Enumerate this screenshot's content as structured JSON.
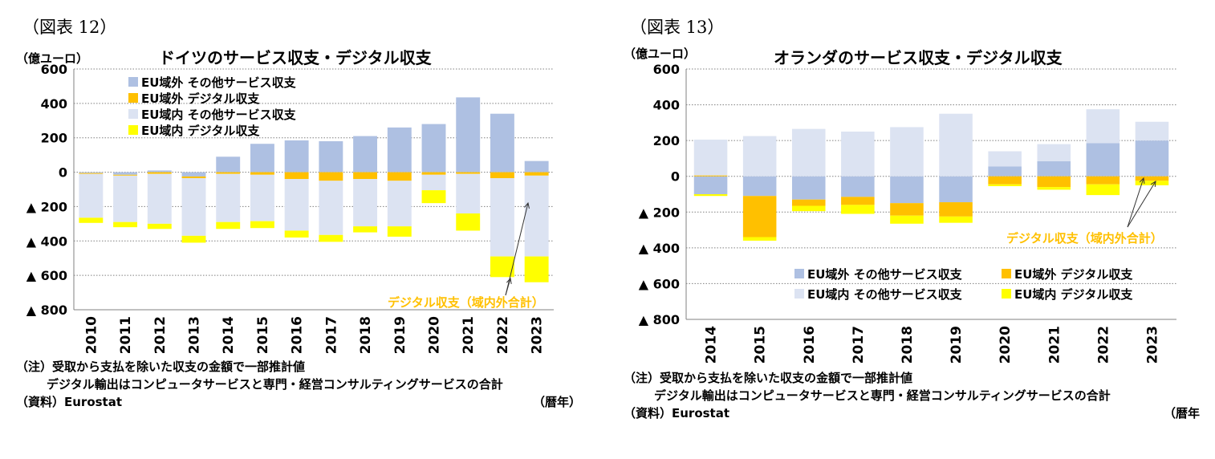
{
  "colors": {
    "extra_other": "#aec0e2",
    "extra_digital": "#ffc000",
    "intra_other": "#dce3f2",
    "intra_digital": "#ffff00",
    "grid": "#808080",
    "annotation": "#ffc000"
  },
  "panels": [
    {
      "fig_label": "（図表 12）",
      "unit_label": "（億ユーロ）",
      "notes": {
        "line1": "（注）受取から支払を除いた収支の金額で一部推計値",
        "line2": "デジタル輸出はコンピュータサービスと専門・経営コンサルティングサービスの合計",
        "line3": "（資料）Eurostat"
      },
      "year_unit": "（暦年）"
    },
    {
      "fig_label": "（図表 13）",
      "unit_label": "（億ユーロ）",
      "notes": {
        "line1": "（注）受取から支払を除いた収支の金額で一部推計値",
        "line2": "デジタル輸出はコンピュータサービスと専門・経営コンサルティングサービスの合計",
        "line3": "（資料）Eurostat"
      },
      "year_unit": "（暦年"
    }
  ],
  "chart_data": [
    {
      "type": "bar",
      "stacked": true,
      "title": "ドイツのサービス収支・デジタル収支",
      "ylabel": "（億ユーロ）",
      "xlabel": "（暦年）",
      "ylim": [
        -800,
        600
      ],
      "yticks": [
        600,
        400,
        200,
        0,
        -200,
        -400,
        -600,
        -800
      ],
      "ytick_labels": [
        "600",
        "400",
        "200",
        "0",
        "▲ 200",
        "▲ 400",
        "▲ 600",
        "▲ 800"
      ],
      "categories": [
        "2010",
        "2011",
        "2012",
        "2013",
        "2014",
        "2015",
        "2016",
        "2017",
        "2018",
        "2019",
        "2020",
        "2021",
        "2022",
        "2023"
      ],
      "series": [
        {
          "name": "EU域外 その他サービス収支",
          "key": "extra_other",
          "values": [
            -5,
            -15,
            10,
            -25,
            90,
            165,
            185,
            180,
            210,
            260,
            280,
            435,
            340,
            65
          ]
        },
        {
          "name": "EU域外 デジタル収支",
          "key": "extra_digital",
          "values": [
            -5,
            -5,
            -10,
            -10,
            -10,
            -15,
            -40,
            -50,
            -40,
            -50,
            -15,
            -10,
            -35,
            -20
          ]
        },
        {
          "name": "EU域内 その他サービス収支",
          "key": "intra_other",
          "values": [
            -255,
            -270,
            -290,
            -335,
            -280,
            -270,
            -300,
            -315,
            -275,
            -265,
            -90,
            -230,
            -455,
            -470
          ]
        },
        {
          "name": "EU域内 デジタル収支",
          "key": "intra_digital",
          "values": [
            -30,
            -30,
            -30,
            -40,
            -40,
            -40,
            -40,
            -40,
            -35,
            -60,
            -75,
            -100,
            -120,
            -150
          ]
        }
      ],
      "legend": [
        "EU域外 その他サービス収支",
        "EU域外 デジタル収支",
        "EU域内 その他サービス収支",
        "EU域内 デジタル収支"
      ],
      "legend_position": "top-left",
      "annotation": {
        "text": "デジタル収支（域内外合計）",
        "position": "bottom-right"
      }
    },
    {
      "type": "bar",
      "stacked": true,
      "title": "オランダのサービス収支・デジタル収支",
      "ylabel": "（億ユーロ）",
      "xlabel": "（暦年）",
      "ylim": [
        -800,
        600
      ],
      "yticks": [
        600,
        400,
        200,
        0,
        -200,
        -400,
        -600,
        -800
      ],
      "ytick_labels": [
        "600",
        "400",
        "200",
        "0",
        "▲ 200",
        "▲ 400",
        "▲ 600",
        "▲ 800"
      ],
      "categories": [
        "2014",
        "2015",
        "2016",
        "2017",
        "2018",
        "2019",
        "2020",
        "2021",
        "2022",
        "2023"
      ],
      "series": [
        {
          "name": "EU域外 その他サービス収支",
          "key": "extra_other",
          "values": [
            -100,
            -110,
            -130,
            -115,
            -150,
            -145,
            55,
            85,
            185,
            200
          ]
        },
        {
          "name": "EU域外 デジタル収支",
          "key": "extra_digital",
          "values": [
            5,
            -230,
            -35,
            -45,
            -70,
            -80,
            -45,
            -60,
            -45,
            -25
          ]
        },
        {
          "name": "EU域内 その他サービス収支",
          "key": "intra_other",
          "values": [
            200,
            225,
            265,
            250,
            275,
            350,
            85,
            95,
            190,
            105
          ]
        },
        {
          "name": "EU域内 デジタル収支",
          "key": "intra_digital",
          "values": [
            -10,
            -20,
            -30,
            -50,
            -45,
            -35,
            -10,
            -15,
            -60,
            -25
          ]
        }
      ],
      "legend": [
        "EU域外 その他サービス収支",
        "EU域外 デジタル収支",
        "EU域内 その他サービス収支",
        "EU域内 デジタル収支"
      ],
      "legend_position": "bottom-right",
      "annotation": {
        "text": "デジタル収支（域内外合計）",
        "position": "right"
      }
    }
  ]
}
